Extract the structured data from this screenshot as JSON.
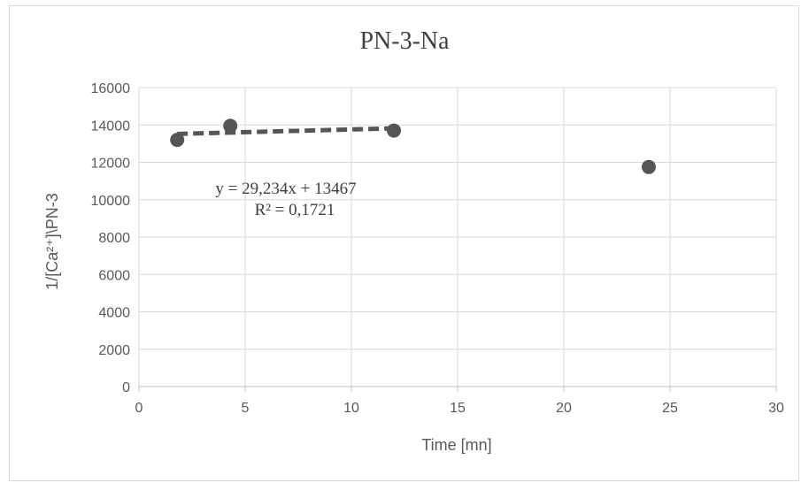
{
  "chart_data": {
    "type": "scatter",
    "title": "PN-3-Na",
    "xlabel": "Time [mn]",
    "ylabel": "1/[Ca²⁺]\\PN-3",
    "xlim": [
      0,
      30
    ],
    "ylim": [
      0,
      16000
    ],
    "x_ticks": [
      0,
      5,
      10,
      15,
      20,
      25,
      30
    ],
    "y_ticks": [
      0,
      2000,
      4000,
      6000,
      8000,
      10000,
      12000,
      14000,
      16000
    ],
    "grid": true,
    "series": [
      {
        "points": [
          {
            "x": 1.8,
            "y": 13200
          },
          {
            "x": 4.3,
            "y": 13950
          },
          {
            "x": 12.0,
            "y": 13700
          },
          {
            "x": 24.0,
            "y": 11750
          }
        ],
        "color": "#555555"
      }
    ],
    "trendline": {
      "type": "linear",
      "slope": 29.234,
      "intercept": 13467,
      "x_range": [
        1.8,
        12.0
      ],
      "style": "dashed",
      "color": "#555555",
      "equation_text": "y = 29,234x  + 13467",
      "r2_text": "R² = 0,1721"
    }
  }
}
